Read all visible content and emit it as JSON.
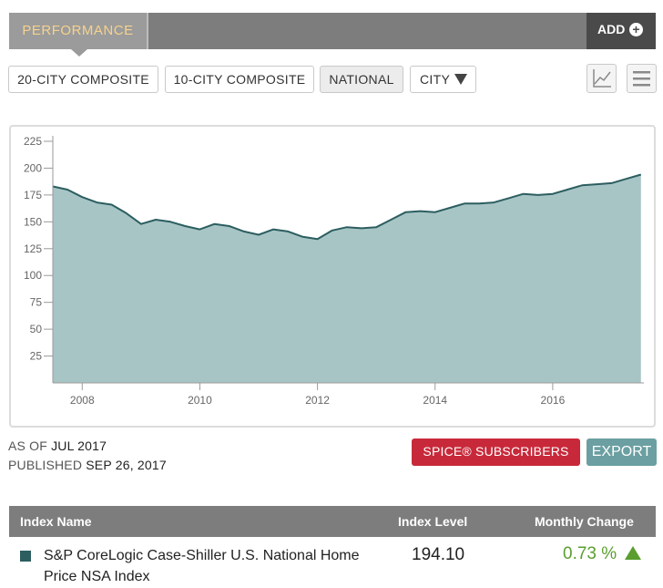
{
  "tabs": {
    "performance_label": "PERFORMANCE",
    "add_label": "ADD"
  },
  "filters": [
    {
      "label": "20-CITY COMPOSITE",
      "active": false
    },
    {
      "label": "10-CITY COMPOSITE",
      "active": false
    },
    {
      "label": "NATIONAL",
      "active": true
    },
    {
      "label": "CITY",
      "active": false
    }
  ],
  "icons": {
    "chart_toggle": "line-chart-icon",
    "menu": "hamburger-menu-icon",
    "dropdown": "triangle-down-icon"
  },
  "meta": {
    "as_of_label": "AS OF",
    "as_of_value": "JUL 2017",
    "published_label": "PUBLISHED",
    "published_value": "SEP 26, 2017"
  },
  "buttons": {
    "spice": "SPICE® SUBSCRIBERS",
    "export": "EXPORT"
  },
  "table": {
    "headers": [
      "Index Name",
      "Index Level",
      "Monthly Change"
    ],
    "rows": [
      {
        "name": "S&P CoreLogic Case-Shiller U.S. National Home Price NSA Index",
        "level": "194.10",
        "change": "0.73 %",
        "direction": "up"
      }
    ]
  },
  "colors": {
    "series": "#2c5e60",
    "fill": "#a8c5c6",
    "positive": "#5a9e2f",
    "spice": "#c8293a",
    "export": "#6b9fa1"
  },
  "chart_data": {
    "type": "area",
    "title": "",
    "xlabel": "",
    "ylabel": "",
    "ylim": [
      0,
      225
    ],
    "xlim": [
      2007.5,
      2017.55
    ],
    "yticks": [
      25,
      50,
      75,
      100,
      125,
      150,
      175,
      200,
      225
    ],
    "xticks": [
      2008,
      2010,
      2012,
      2014,
      2016
    ],
    "grid": false,
    "series": [
      {
        "x": [
          2007.5,
          2007.75,
          2008.0,
          2008.25,
          2008.5,
          2008.75,
          2009.0,
          2009.25,
          2009.5,
          2009.75,
          2010.0,
          2010.25,
          2010.5,
          2010.75,
          2011.0,
          2011.25,
          2011.5,
          2011.75,
          2012.0,
          2012.25,
          2012.5,
          2012.75,
          2013.0,
          2013.25,
          2013.5,
          2013.75,
          2014.0,
          2014.25,
          2014.5,
          2014.75,
          2015.0,
          2015.25,
          2015.5,
          2015.75,
          2016.0,
          2016.25,
          2016.5,
          2016.75,
          2017.0,
          2017.25,
          2017.5
        ],
        "y": [
          183,
          180,
          173,
          168,
          166,
          158,
          148,
          152,
          150,
          146,
          143,
          148,
          146,
          141,
          138,
          143,
          141,
          136,
          134,
          142,
          145,
          144,
          145,
          152,
          159,
          160,
          159,
          163,
          167,
          167,
          168,
          172,
          176,
          175,
          176,
          180,
          184,
          185,
          186,
          190,
          194
        ]
      }
    ]
  }
}
